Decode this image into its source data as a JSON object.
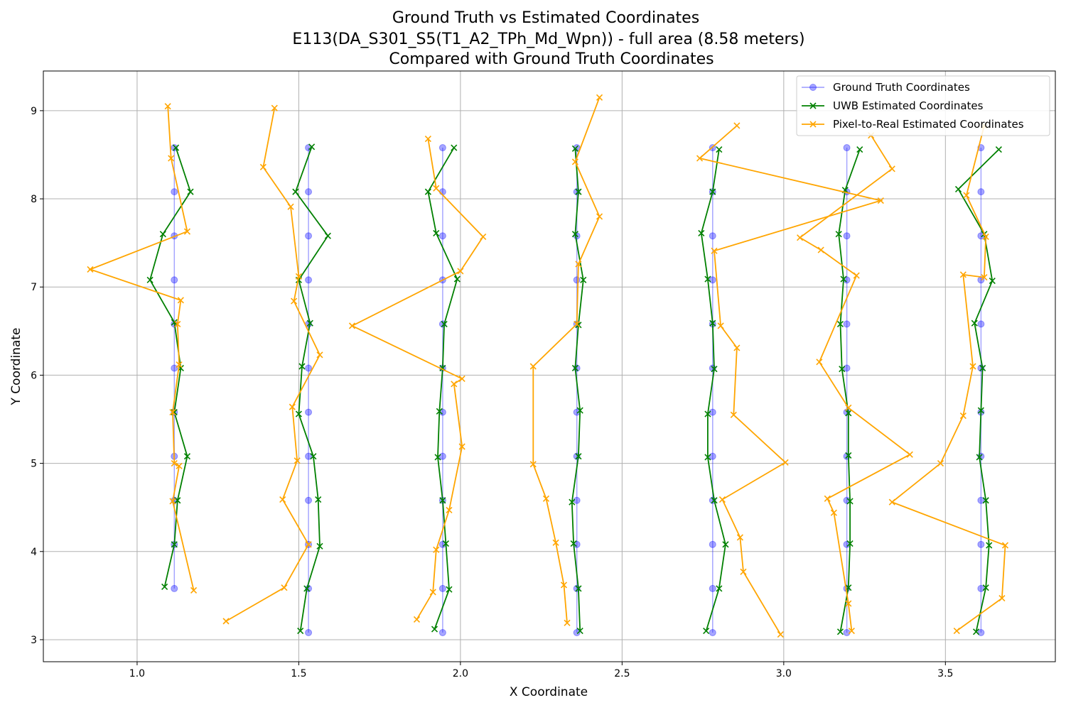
{
  "chart_data": {
    "type": "line",
    "title": [
      "Ground Truth vs Estimated Coordinates",
      "E113(DA_S301_S5(T1_A2_TPh_Md_Wpn)) - full area (8.58 meters)",
      "Compared with Ground Truth Coordinates"
    ],
    "xlabel": "X Coordinate",
    "ylabel": "Y Coordinate",
    "xlim": [
      0.71,
      3.84
    ],
    "ylim": [
      2.75,
      9.45
    ],
    "xticks": [
      1.0,
      1.5,
      2.0,
      2.5,
      3.0,
      3.5
    ],
    "xtick_labels": [
      "1.0",
      "1.5",
      "2.0",
      "2.5",
      "3.0",
      "3.5"
    ],
    "yticks": [
      3,
      4,
      5,
      6,
      7,
      8,
      9
    ],
    "ytick_labels": [
      "3",
      "4",
      "5",
      "6",
      "7",
      "8",
      "9"
    ],
    "grid": true,
    "legend_position": "top-right",
    "series": [
      {
        "name": "Ground Truth Coordinates",
        "color": "#0000ff",
        "marker": "circle",
        "paths": [
          [
            [
              1.115,
              8.58
            ],
            [
              1.115,
              8.08
            ],
            [
              1.115,
              7.58
            ],
            [
              1.115,
              7.08
            ],
            [
              1.115,
              6.58
            ],
            [
              1.115,
              6.08
            ],
            [
              1.115,
              5.58
            ],
            [
              1.115,
              5.08
            ],
            [
              1.115,
              4.58
            ],
            [
              1.115,
              4.08
            ],
            [
              1.115,
              3.58
            ]
          ],
          [
            [
              1.53,
              8.58
            ],
            [
              1.53,
              8.08
            ],
            [
              1.53,
              7.58
            ],
            [
              1.53,
              7.08
            ],
            [
              1.53,
              6.58
            ],
            [
              1.53,
              6.08
            ],
            [
              1.53,
              5.58
            ],
            [
              1.53,
              5.08
            ],
            [
              1.53,
              4.58
            ],
            [
              1.53,
              4.08
            ],
            [
              1.53,
              3.58
            ],
            [
              1.53,
              3.08
            ]
          ],
          [
            [
              1.945,
              8.58
            ],
            [
              1.945,
              8.08
            ],
            [
              1.945,
              7.58
            ],
            [
              1.945,
              7.08
            ],
            [
              1.945,
              6.58
            ],
            [
              1.945,
              6.08
            ],
            [
              1.945,
              5.58
            ],
            [
              1.945,
              5.08
            ],
            [
              1.945,
              4.58
            ],
            [
              1.945,
              4.08
            ],
            [
              1.945,
              3.58
            ],
            [
              1.945,
              3.08
            ]
          ],
          [
            [
              2.36,
              8.58
            ],
            [
              2.36,
              8.08
            ],
            [
              2.36,
              7.58
            ],
            [
              2.36,
              7.08
            ],
            [
              2.36,
              6.58
            ],
            [
              2.36,
              6.08
            ],
            [
              2.36,
              5.58
            ],
            [
              2.36,
              5.08
            ],
            [
              2.36,
              4.58
            ],
            [
              2.36,
              4.08
            ],
            [
              2.36,
              3.58
            ],
            [
              2.36,
              3.08
            ]
          ],
          [
            [
              2.78,
              8.58
            ],
            [
              2.78,
              8.08
            ],
            [
              2.78,
              7.58
            ],
            [
              2.78,
              7.08
            ],
            [
              2.78,
              6.58
            ],
            [
              2.78,
              6.08
            ],
            [
              2.78,
              5.58
            ],
            [
              2.78,
              5.08
            ],
            [
              2.78,
              4.58
            ],
            [
              2.78,
              4.08
            ],
            [
              2.78,
              3.58
            ],
            [
              2.78,
              3.08
            ]
          ],
          [
            [
              3.195,
              8.58
            ],
            [
              3.195,
              8.08
            ],
            [
              3.195,
              7.58
            ],
            [
              3.195,
              7.08
            ],
            [
              3.195,
              6.58
            ],
            [
              3.195,
              6.08
            ],
            [
              3.195,
              5.58
            ],
            [
              3.195,
              5.08
            ],
            [
              3.195,
              4.58
            ],
            [
              3.195,
              4.08
            ],
            [
              3.195,
              3.58
            ],
            [
              3.195,
              3.08
            ]
          ],
          [
            [
              3.61,
              8.58
            ],
            [
              3.61,
              8.08
            ],
            [
              3.61,
              7.58
            ],
            [
              3.61,
              7.08
            ],
            [
              3.61,
              6.58
            ],
            [
              3.61,
              6.08
            ],
            [
              3.61,
              5.58
            ],
            [
              3.61,
              5.08
            ],
            [
              3.61,
              4.58
            ],
            [
              3.61,
              4.08
            ],
            [
              3.61,
              3.58
            ],
            [
              3.61,
              3.08
            ]
          ]
        ]
      },
      {
        "name": "UWB Estimated Coordinates",
        "color": "#008000",
        "marker": "x",
        "paths": [
          [
            [
              1.12,
              8.58
            ],
            [
              1.165,
              8.08
            ],
            [
              1.08,
              7.6
            ],
            [
              1.04,
              7.08
            ],
            [
              1.115,
              6.6
            ],
            [
              1.135,
              6.08
            ],
            [
              1.115,
              5.58
            ],
            [
              1.155,
              5.08
            ],
            [
              1.125,
              4.58
            ],
            [
              1.115,
              4.08
            ],
            [
              1.085,
              3.6
            ]
          ],
          [
            [
              1.54,
              8.59
            ],
            [
              1.49,
              8.08
            ],
            [
              1.59,
              7.58
            ],
            [
              1.5,
              7.08
            ],
            [
              1.535,
              6.59
            ],
            [
              1.51,
              6.1
            ],
            [
              1.5,
              5.56
            ],
            [
              1.545,
              5.08
            ],
            [
              1.56,
              4.59
            ],
            [
              1.565,
              4.06
            ],
            [
              1.525,
              3.58
            ],
            [
              1.505,
              3.1
            ]
          ],
          [
            [
              1.98,
              8.58
            ],
            [
              1.9,
              8.08
            ],
            [
              1.925,
              7.61
            ],
            [
              1.99,
              7.09
            ],
            [
              1.95,
              6.58
            ],
            [
              1.945,
              6.08
            ],
            [
              1.935,
              5.59
            ],
            [
              1.93,
              5.07
            ],
            [
              1.945,
              4.58
            ],
            [
              1.955,
              4.09
            ],
            [
              1.965,
              3.57
            ],
            [
              1.92,
              3.12
            ]
          ],
          [
            [
              2.355,
              8.57
            ],
            [
              2.365,
              8.08
            ],
            [
              2.355,
              7.6
            ],
            [
              2.38,
              7.08
            ],
            [
              2.365,
              6.57
            ],
            [
              2.355,
              6.08
            ],
            [
              2.37,
              5.6
            ],
            [
              2.365,
              5.08
            ],
            [
              2.345,
              4.56
            ],
            [
              2.35,
              4.09
            ],
            [
              2.365,
              3.58
            ],
            [
              2.37,
              3.1
            ]
          ],
          [
            [
              2.8,
              8.56
            ],
            [
              2.78,
              8.08
            ],
            [
              2.745,
              7.61
            ],
            [
              2.765,
              7.09
            ],
            [
              2.78,
              6.59
            ],
            [
              2.785,
              6.07
            ],
            [
              2.765,
              5.56
            ],
            [
              2.765,
              5.07
            ],
            [
              2.785,
              4.58
            ],
            [
              2.82,
              4.08
            ],
            [
              2.8,
              3.58
            ],
            [
              2.76,
              3.1
            ]
          ],
          [
            [
              3.235,
              8.56
            ],
            [
              3.19,
              8.1
            ],
            [
              3.17,
              7.6
            ],
            [
              3.185,
              7.09
            ],
            [
              3.175,
              6.58
            ],
            [
              3.18,
              6.07
            ],
            [
              3.2,
              5.57
            ],
            [
              3.2,
              5.09
            ],
            [
              3.205,
              4.57
            ],
            [
              3.205,
              4.09
            ],
            [
              3.2,
              3.59
            ],
            [
              3.175,
              3.09
            ]
          ],
          [
            [
              3.665,
              8.56
            ],
            [
              3.54,
              8.11
            ],
            [
              3.62,
              7.6
            ],
            [
              3.645,
              7.07
            ],
            [
              3.59,
              6.59
            ],
            [
              3.615,
              6.08
            ],
            [
              3.61,
              5.6
            ],
            [
              3.605,
              5.07
            ],
            [
              3.625,
              4.58
            ],
            [
              3.635,
              4.07
            ],
            [
              3.625,
              3.59
            ],
            [
              3.595,
              3.09
            ]
          ]
        ]
      },
      {
        "name": "Pixel-to-Real Estimated Coordinates",
        "color": "#ffa500",
        "marker": "x",
        "paths": [
          [
            [
              1.095,
              9.05
            ],
            [
              1.105,
              8.46
            ],
            [
              1.155,
              7.63
            ],
            [
              0.855,
              7.2
            ],
            [
              1.135,
              6.85
            ],
            [
              1.125,
              6.58
            ],
            [
              1.13,
              6.12
            ],
            [
              1.11,
              5.58
            ],
            [
              1.115,
              5.0
            ],
            [
              1.13,
              4.97
            ],
            [
              1.11,
              4.57
            ],
            [
              1.175,
              3.56
            ]
          ],
          [
            [
              1.425,
              9.03
            ],
            [
              1.39,
              8.36
            ],
            [
              1.475,
              7.91
            ],
            [
              1.5,
              7.12
            ],
            [
              1.485,
              6.84
            ],
            [
              1.565,
              6.23
            ],
            [
              1.48,
              5.64
            ],
            [
              1.495,
              5.03
            ],
            [
              1.45,
              4.59
            ],
            [
              1.53,
              4.08
            ],
            [
              1.455,
              3.59
            ],
            [
              1.275,
              3.21
            ]
          ],
          [
            [
              1.9,
              8.68
            ],
            [
              1.925,
              8.12
            ],
            [
              2.07,
              7.57
            ],
            [
              2.0,
              7.18
            ],
            [
              1.665,
              6.56
            ],
            [
              2.005,
              5.96
            ],
            [
              1.98,
              5.9
            ],
            [
              2.005,
              5.19
            ],
            [
              1.965,
              4.47
            ],
            [
              1.925,
              4.02
            ],
            [
              1.915,
              3.54
            ],
            [
              1.865,
              3.23
            ]
          ],
          [
            [
              2.43,
              9.15
            ],
            [
              2.355,
              8.42
            ],
            [
              2.43,
              7.8
            ],
            [
              2.365,
              7.26
            ],
            [
              2.36,
              6.58
            ],
            [
              2.225,
              6.1
            ],
            [
              2.225,
              4.99
            ],
            [
              2.265,
              4.6
            ],
            [
              2.295,
              4.1
            ],
            [
              2.32,
              3.62
            ],
            [
              2.33,
              3.19
            ]
          ],
          [
            [
              2.855,
              8.83
            ],
            [
              2.74,
              8.46
            ],
            [
              3.3,
              7.98
            ],
            [
              2.785,
              7.41
            ],
            [
              2.805,
              6.56
            ],
            [
              2.855,
              6.31
            ],
            [
              2.845,
              5.55
            ],
            [
              3.005,
              5.01
            ],
            [
              2.81,
              4.59
            ],
            [
              2.865,
              4.16
            ],
            [
              2.875,
              3.77
            ],
            [
              2.99,
              3.06
            ]
          ],
          [
            [
              3.27,
              8.72
            ],
            [
              3.335,
              8.34
            ],
            [
              3.05,
              7.56
            ],
            [
              3.115,
              7.42
            ],
            [
              3.225,
              7.13
            ],
            [
              3.11,
              6.15
            ],
            [
              3.2,
              5.63
            ],
            [
              3.39,
              5.1
            ],
            [
              3.135,
              4.6
            ],
            [
              3.155,
              4.44
            ],
            [
              3.2,
              3.41
            ],
            [
              3.21,
              3.1
            ]
          ],
          [
            [
              3.62,
              8.83
            ],
            [
              3.565,
              8.04
            ],
            [
              3.625,
              7.57
            ],
            [
              3.62,
              7.11
            ],
            [
              3.555,
              7.14
            ],
            [
              3.585,
              6.1
            ],
            [
              3.555,
              5.54
            ],
            [
              3.485,
              5.0
            ],
            [
              3.335,
              4.56
            ],
            [
              3.685,
              4.07
            ],
            [
              3.675,
              3.47
            ],
            [
              3.535,
              3.1
            ]
          ]
        ]
      }
    ]
  }
}
